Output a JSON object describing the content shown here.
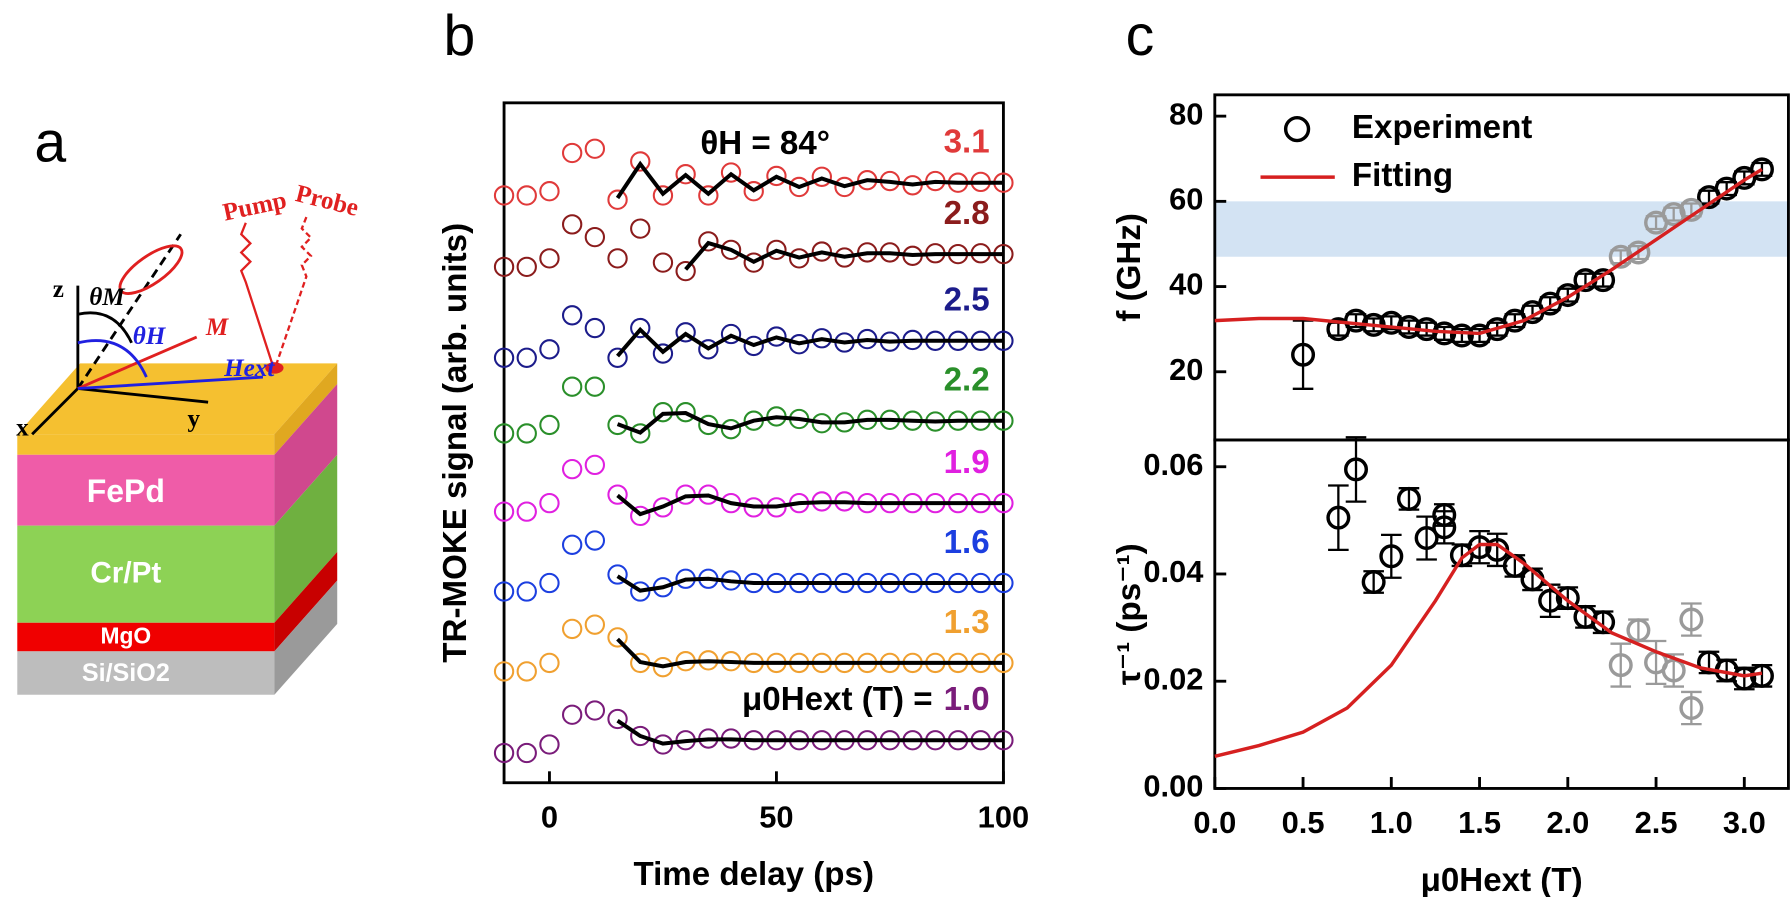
{
  "panel_labels": [
    "a",
    "b",
    "c"
  ],
  "diagram": {
    "pump": "Pump",
    "probe": "Probe",
    "axes": [
      "z",
      "x",
      "y"
    ],
    "theta_m": "θM",
    "theta_h": "θH",
    "m": "M",
    "h_ext": "Hext",
    "layers": [
      "FePd",
      "Cr/Pt",
      "MgO",
      "Si/SiO2"
    ]
  },
  "chart_data": [
    {
      "type": "traces",
      "y_label": "TR-MOKE signal (arb. units)",
      "x_label": "Time delay (ps)",
      "annotations": [
        "θH = 84°",
        "μ0Hext (T) ="
      ],
      "xlim": [
        -10,
        100
      ],
      "xticks": [
        0,
        50,
        100
      ],
      "ylim": [
        0,
        8
      ],
      "fit_color": "#000000",
      "x": [
        -10,
        -5,
        0,
        5,
        10,
        15,
        20,
        25,
        30,
        35,
        40,
        45,
        50,
        55,
        60,
        65,
        70,
        75,
        80,
        85,
        90,
        95,
        100
      ],
      "series": [
        {
          "name": "3.1",
          "color": "#e03a3a",
          "values": [
            6.91,
            6.91,
            6.96,
            7.41,
            7.46,
            6.86,
            7.31,
            6.91,
            7.16,
            6.91,
            7.18,
            6.96,
            7.14,
            7.01,
            7.13,
            7.01,
            7.09,
            7.08,
            7.03,
            7.08,
            7.06,
            7.07,
            7.06
          ],
          "fit": [
            null,
            null,
            null,
            null,
            null,
            6.88,
            7.28,
            6.93,
            7.15,
            6.93,
            7.16,
            6.97,
            7.13,
            7.01,
            7.11,
            7.02,
            7.09,
            7.07,
            7.04,
            7.07,
            7.06,
            7.06,
            7.06
          ]
        },
        {
          "name": "2.8",
          "color": "#8b1c1c",
          "values": [
            6.07,
            6.07,
            6.17,
            6.57,
            6.42,
            6.17,
            6.52,
            6.12,
            6.02,
            6.37,
            6.27,
            6.12,
            6.27,
            6.17,
            6.25,
            6.18,
            6.24,
            6.24,
            6.2,
            6.23,
            6.22,
            6.23,
            6.22
          ],
          "fit": [
            null,
            null,
            null,
            null,
            null,
            null,
            null,
            null,
            6.04,
            6.35,
            6.27,
            6.13,
            6.26,
            6.18,
            6.24,
            6.19,
            6.23,
            6.23,
            6.21,
            6.22,
            6.22,
            6.22,
            6.22
          ]
        },
        {
          "name": "2.5",
          "color": "#1c1c8b",
          "values": [
            5.0,
            5.0,
            5.1,
            5.5,
            5.35,
            5.0,
            5.35,
            5.05,
            5.3,
            5.1,
            5.28,
            5.14,
            5.25,
            5.16,
            5.23,
            5.18,
            5.22,
            5.19,
            5.21,
            5.2,
            5.2,
            5.2,
            5.2
          ],
          "fit": [
            null,
            null,
            null,
            null,
            null,
            5.02,
            5.33,
            5.07,
            5.28,
            5.11,
            5.26,
            5.15,
            5.24,
            5.17,
            5.22,
            5.18,
            5.21,
            5.19,
            5.2,
            5.2,
            5.2,
            5.2,
            5.2
          ]
        },
        {
          "name": "2.2",
          "color": "#2a8f2a",
          "values": [
            4.11,
            4.11,
            4.21,
            4.66,
            4.66,
            4.21,
            4.11,
            4.36,
            4.36,
            4.21,
            4.16,
            4.26,
            4.31,
            4.28,
            4.23,
            4.24,
            4.27,
            4.27,
            4.26,
            4.25,
            4.26,
            4.26,
            4.26
          ],
          "fit": [
            null,
            null,
            null,
            null,
            null,
            4.22,
            4.12,
            4.34,
            4.35,
            4.22,
            4.17,
            4.26,
            4.3,
            4.28,
            4.24,
            4.24,
            4.27,
            4.27,
            4.26,
            4.25,
            4.26,
            4.26,
            4.26
          ]
        },
        {
          "name": "1.9",
          "color": "#e020e0",
          "values": [
            3.19,
            3.19,
            3.29,
            3.69,
            3.74,
            3.39,
            3.14,
            3.24,
            3.39,
            3.39,
            3.29,
            3.24,
            3.24,
            3.29,
            3.31,
            3.31,
            3.29,
            3.29,
            3.29,
            3.29,
            3.29,
            3.29,
            3.29
          ],
          "fit": [
            null,
            null,
            null,
            null,
            null,
            3.38,
            3.16,
            3.25,
            3.37,
            3.38,
            3.29,
            3.25,
            3.25,
            3.29,
            3.3,
            3.3,
            3.29,
            3.29,
            3.29,
            3.29,
            3.29,
            3.29,
            3.29
          ]
        },
        {
          "name": "1.6",
          "color": "#1c3fe0",
          "values": [
            2.25,
            2.25,
            2.35,
            2.8,
            2.85,
            2.45,
            2.25,
            2.3,
            2.4,
            2.4,
            2.38,
            2.35,
            2.35,
            2.35,
            2.35,
            2.35,
            2.35,
            2.35,
            2.35,
            2.35,
            2.35,
            2.35,
            2.35
          ],
          "fit": [
            null,
            null,
            null,
            null,
            null,
            2.43,
            2.26,
            2.3,
            2.39,
            2.4,
            2.37,
            2.35,
            2.35,
            2.35,
            2.35,
            2.35,
            2.35,
            2.35,
            2.35,
            2.35,
            2.35,
            2.35,
            2.35
          ]
        },
        {
          "name": "1.3",
          "color": "#f0a030",
          "values": [
            1.31,
            1.31,
            1.41,
            1.81,
            1.86,
            1.71,
            1.41,
            1.36,
            1.43,
            1.44,
            1.43,
            1.41,
            1.41,
            1.41,
            1.41,
            1.41,
            1.41,
            1.41,
            1.41,
            1.41,
            1.41,
            1.41,
            1.41
          ],
          "fit": [
            null,
            null,
            null,
            null,
            null,
            1.69,
            1.42,
            1.37,
            1.42,
            1.43,
            1.42,
            1.41,
            1.41,
            1.41,
            1.41,
            1.41,
            1.41,
            1.41,
            1.41,
            1.41,
            1.41,
            1.41,
            1.41
          ]
        },
        {
          "name": "1.0",
          "color": "#7a1c7a",
          "values": [
            0.35,
            0.35,
            0.45,
            0.8,
            0.85,
            0.75,
            0.55,
            0.45,
            0.5,
            0.52,
            0.52,
            0.5,
            0.5,
            0.5,
            0.5,
            0.5,
            0.5,
            0.5,
            0.5,
            0.5,
            0.5,
            0.5,
            0.5
          ],
          "fit": [
            null,
            null,
            null,
            null,
            null,
            0.73,
            0.55,
            0.46,
            0.49,
            0.51,
            0.51,
            0.5,
            0.5,
            0.5,
            0.5,
            0.5,
            0.5,
            0.5,
            0.5,
            0.5,
            0.5,
            0.5,
            0.5
          ]
        }
      ]
    },
    {
      "type": "scatter",
      "y_label": "f (GHz)",
      "xlim": [
        0,
        3.25
      ],
      "ylim": [
        4,
        85
      ],
      "yticks": [
        20,
        40,
        60,
        80
      ],
      "band": [
        47,
        60
      ],
      "band_color": "#d3e3f3",
      "legend": "upper left",
      "series": [
        {
          "name": "Experiment",
          "mode": "markers",
          "color": "#000000",
          "x": [
            0.5,
            0.7,
            0.8,
            0.9,
            1.0,
            1.1,
            1.2,
            1.3,
            1.4,
            1.5,
            1.6,
            1.7,
            1.8,
            1.9,
            2.0,
            2.1,
            2.2,
            2.8,
            2.9,
            3.0,
            3.1
          ],
          "values": [
            24,
            30,
            32,
            31,
            31.5,
            30.5,
            30,
            29,
            28.5,
            28.5,
            30,
            32,
            34,
            36,
            38,
            41.5,
            41.5,
            61,
            63,
            65.5,
            67.5
          ],
          "errors": [
            8,
            1.5,
            1.5,
            1.5,
            1.5,
            1.5,
            1.5,
            1.5,
            1.5,
            1.5,
            1.5,
            1.5,
            1.5,
            1.5,
            1.5,
            1.5,
            1.5,
            1.5,
            1.5,
            1.5,
            1.5
          ]
        },
        {
          "mode": "markers",
          "color": "#9a9a9a",
          "x": [
            2.3,
            2.4,
            2.5,
            2.6,
            2.7
          ],
          "values": [
            47,
            48,
            55,
            57,
            58
          ],
          "errors": [
            1.5,
            1.5,
            1.5,
            1.5,
            1.5
          ]
        },
        {
          "name": "Fitting",
          "mode": "line",
          "color": "#d62020",
          "x": [
            0,
            0.25,
            0.5,
            0.75,
            1.0,
            1.25,
            1.5,
            1.75,
            2.0,
            2.25,
            2.5,
            2.75,
            3.0,
            3.1
          ],
          "values": [
            32,
            32.5,
            32.5,
            31.5,
            30.5,
            29.5,
            29,
            32,
            37.5,
            44,
            51,
            58,
            65,
            67.5
          ]
        }
      ]
    },
    {
      "type": "scatter",
      "y_label": "τ⁻¹ (ps⁻¹)",
      "x_label": "μ0Hext (T)",
      "xlim": [
        0,
        3.25
      ],
      "xticks": [
        {
          "value": 0,
          "label": "0.0"
        },
        {
          "value": 0.5,
          "label": "0.5"
        },
        {
          "value": 1,
          "label": "1.0"
        },
        {
          "value": 1.5,
          "label": "1.5"
        },
        {
          "value": 2,
          "label": "2.0"
        },
        {
          "value": 2.5,
          "label": "2.5"
        },
        {
          "value": 3,
          "label": "3.0"
        }
      ],
      "ylim": [
        0,
        0.065
      ],
      "yticks": [
        {
          "value": 0,
          "label": "0.00"
        },
        {
          "value": 0.02,
          "label": "0.02"
        },
        {
          "value": 0.04,
          "label": "0.04"
        },
        {
          "value": 0.06,
          "label": "0.06"
        }
      ],
      "series": [
        {
          "mode": "markers",
          "color": "#000000",
          "x": [
            0.7,
            0.8,
            0.9,
            1.0,
            1.1,
            1.2,
            1.3,
            1.3,
            1.4,
            1.5,
            1.6,
            1.7,
            1.8,
            1.9,
            2.0,
            2.1,
            2.2,
            2.8,
            2.9,
            3.0,
            3.1
          ],
          "values": [
            0.0505,
            0.0595,
            0.0385,
            0.0433,
            0.054,
            0.0467,
            0.0487,
            0.051,
            0.0435,
            0.045,
            0.0445,
            0.0415,
            0.039,
            0.035,
            0.0355,
            0.032,
            0.031,
            0.0235,
            0.022,
            0.0205,
            0.021
          ],
          "errors": [
            0.006,
            0.006,
            0.002,
            0.004,
            0.002,
            0.004,
            0.003,
            0.002,
            0.002,
            0.003,
            0.003,
            0.002,
            0.002,
            0.003,
            0.002,
            0.002,
            0.002,
            0.002,
            0.002,
            0.002,
            0.002
          ]
        },
        {
          "mode": "markers",
          "color": "#9a9a9a",
          "x": [
            2.3,
            2.4,
            2.5,
            2.6,
            2.7,
            2.7
          ],
          "values": [
            0.023,
            0.0295,
            0.0235,
            0.022,
            0.0315,
            0.015
          ],
          "errors": [
            0.004,
            0.002,
            0.004,
            0.003,
            0.003,
            0.003
          ]
        },
        {
          "mode": "line",
          "color": "#d62020",
          "x": [
            0,
            0.25,
            0.5,
            0.75,
            1.0,
            1.25,
            1.4,
            1.5,
            1.6,
            1.75,
            2.0,
            2.25,
            2.5,
            2.75,
            3.0,
            3.1
          ],
          "values": [
            0.006,
            0.008,
            0.0105,
            0.015,
            0.023,
            0.035,
            0.043,
            0.0455,
            0.0455,
            0.042,
            0.035,
            0.029,
            0.0255,
            0.0225,
            0.021,
            0.0215
          ]
        }
      ]
    }
  ]
}
